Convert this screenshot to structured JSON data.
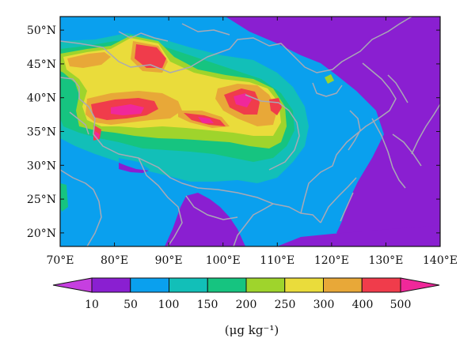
{
  "map": {
    "lon_ticks": [
      "70°E",
      "80°E",
      "90°E",
      "100°E",
      "110°E",
      "120°E",
      "130°E",
      "140°E"
    ],
    "lat_ticks": [
      "20°N",
      "25°N",
      "30°N",
      "35°N",
      "40°N",
      "45°N",
      "50°N"
    ],
    "lon_range": [
      70,
      140
    ],
    "lat_range": [
      18,
      52
    ]
  },
  "colorbar": {
    "levels": [
      "10",
      "50",
      "100",
      "150",
      "200",
      "250",
      "300",
      "400",
      "500"
    ],
    "colors": [
      "#8a1fd1",
      "#0aa0ee",
      "#12bfb8",
      "#16c480",
      "#9fd42c",
      "#eadc3b",
      "#e8a838",
      "#f03c4b"
    ],
    "under_color": "#c63fe0",
    "over_color": "#f0289a",
    "unit": "(μg kg⁻¹)"
  },
  "palette": {
    "c1": "#8a1fd1",
    "c2": "#0aa0ee",
    "c3": "#12bfb8",
    "c4": "#16c480",
    "c5": "#9fd42c",
    "c6": "#eadc3b",
    "c7": "#e8a838",
    "c8": "#f03c4b",
    "c9": "#f0289a",
    "border": "#a9a9b5"
  }
}
